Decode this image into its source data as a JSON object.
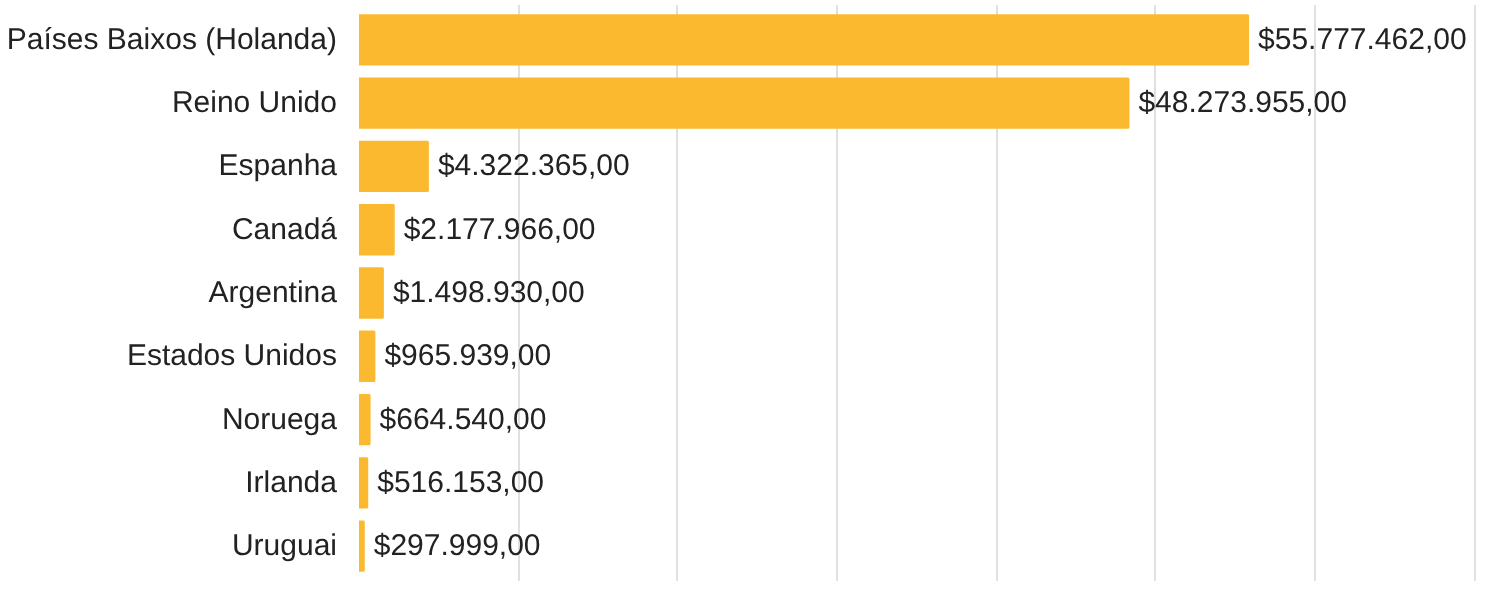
{
  "chart_data": {
    "type": "bar",
    "orientation": "horizontal",
    "categories": [
      "Países Baixos (Holanda)",
      "Reino Unido",
      "Espanha",
      "Canadá",
      "Argentina",
      "Estados Unidos",
      "Noruega",
      "Irlanda",
      "Uruguai"
    ],
    "values": [
      55777462,
      48273955,
      4322365,
      2177966,
      1498930,
      965939,
      664540,
      516153,
      297999
    ],
    "value_labels": [
      "$55.777.462,00",
      "$48.273.955,00",
      "$4.322.365,00",
      "$2.177.966,00",
      "$1.498.930,00",
      "$965.939,00",
      "$664.540,00",
      "$516.153,00",
      "$297.999,00"
    ],
    "color": "#fbb92f",
    "tick_labels": "y",
    "grid": "x"
  }
}
